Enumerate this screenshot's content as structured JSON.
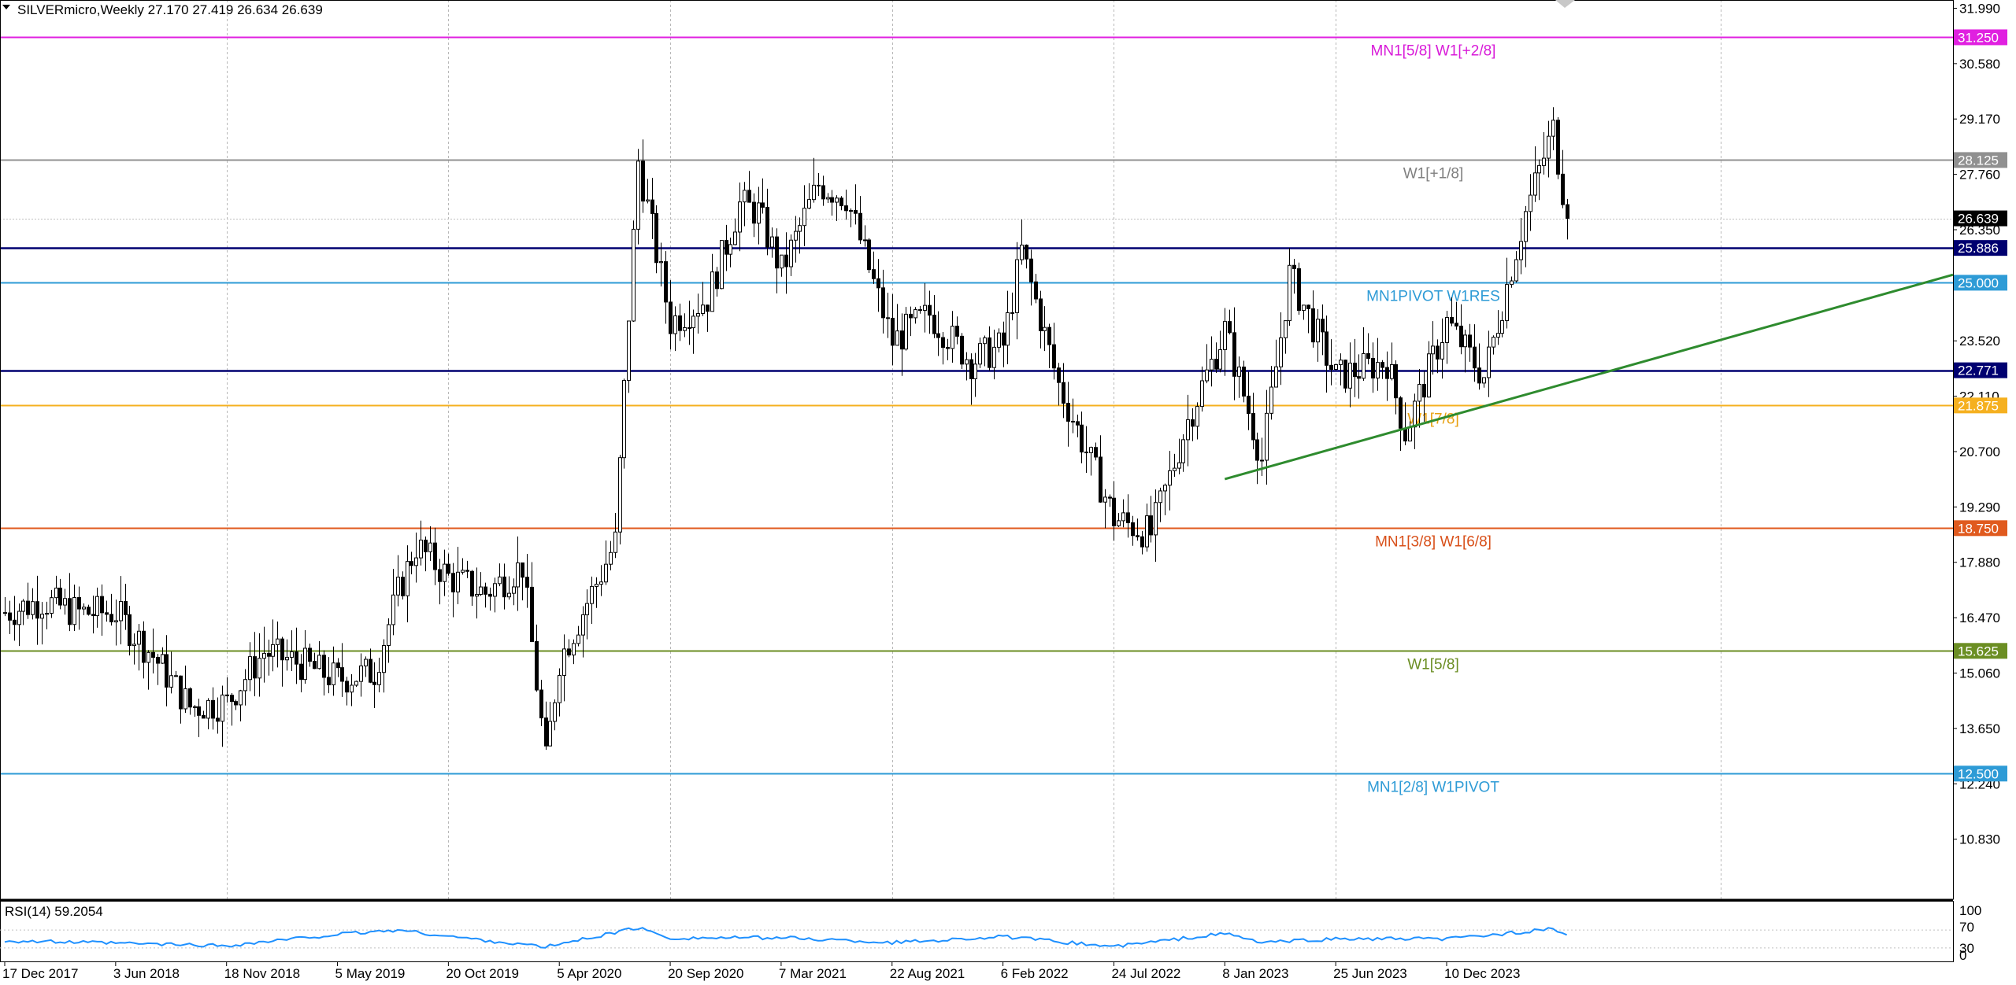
{
  "header": {
    "symbol": "SILVERmicro,Weekly",
    "ohlc": "27.170 27.419 26.634 26.639"
  },
  "rsi": {
    "title": "RSI(14) 59.2054",
    "current": 59.2,
    "levels": [
      70,
      30
    ],
    "scale_labels": [
      "100",
      "70",
      "30",
      "0"
    ],
    "line_color": "#1e90ff"
  },
  "levels": [
    {
      "label": "MN1[5/8] W1[+2/8]",
      "price": 31.25,
      "price_label": "31.250",
      "color": "#e020e0",
      "text_color": "#d81bd8"
    },
    {
      "label": "W1[+1/8]",
      "price": 28.125,
      "price_label": "28.125",
      "color": "#909090",
      "text_color": "#808080"
    },
    {
      "label": "",
      "price": 25.886,
      "price_label": "25.886",
      "color": "#000070",
      "text_color": "#000070"
    },
    {
      "label": "MN1PIVOT W1RES",
      "price": 25.0,
      "price_label": "25.000",
      "color": "#2e9bd6",
      "text_color": "#2e9bd6"
    },
    {
      "label": "",
      "price": 22.771,
      "price_label": "22.771",
      "color": "#000070",
      "text_color": "#000070"
    },
    {
      "label": "W1[7/8]",
      "price": 21.875,
      "price_label": "21.875",
      "color": "#f5b020",
      "text_color": "#e8a010"
    },
    {
      "label": "MN1[3/8] W1[6/8]",
      "price": 18.75,
      "price_label": "18.750",
      "color": "#e05a1e",
      "text_color": "#d8501a"
    },
    {
      "label": "W1[5/8]",
      "price": 15.625,
      "price_label": "15.625",
      "color": "#6b8e23",
      "text_color": "#6b8e23"
    },
    {
      "label": "MN1[2/8] W1PIVOT",
      "price": 12.5,
      "price_label": "12.500",
      "color": "#2e9bd6",
      "text_color": "#2e9bd6"
    }
  ],
  "current_price": {
    "value": 26.639,
    "label": "26.639"
  },
  "chart_data": {
    "type": "candlestick",
    "title": "SILVERmicro,Weekly",
    "ylim": [
      9.3,
      32.2
    ],
    "y_ticks": [
      "31.990",
      "30.580",
      "29.170",
      "27.760",
      "26.350",
      "23.520",
      "22.110",
      "20.700",
      "19.290",
      "17.880",
      "16.470",
      "15.060",
      "13.650",
      "12.240",
      "10.830"
    ],
    "x_labels": [
      "17 Dec 2017",
      "3 Jun 2018",
      "18 Nov 2018",
      "5 May 2019",
      "20 Oct 2019",
      "5 Apr 2020",
      "20 Sep 2020",
      "7 Mar 2021",
      "22 Aug 2021",
      "6 Feb 2022",
      "24 Jul 2022",
      "8 Jan 2023",
      "25 Jun 2023",
      "10 Dec 2023"
    ],
    "grid": true,
    "close_anchors": [
      [
        "17 Dec 2017",
        16.6
      ],
      [
        "11 Feb 2018",
        16.9
      ],
      [
        "8 Apr 2018",
        16.6
      ],
      [
        "3 Jun 2018",
        16.6
      ],
      [
        "29 Jul 2018",
        15.5
      ],
      [
        "23 Sep 2018",
        14.2
      ],
      [
        "18 Nov 2018",
        14.3
      ],
      [
        "13 Jan 2019",
        15.6
      ],
      [
        "10 Mar 2019",
        15.3
      ],
      [
        "5 May 2019",
        14.9
      ],
      [
        "30 Jun 2019",
        15.1
      ],
      [
        "4 Aug 2019",
        17.1
      ],
      [
        "1 Sep 2019",
        18.3
      ],
      [
        "20 Oct 2019",
        17.5
      ],
      [
        "15 Dec 2019",
        17.1
      ],
      [
        "9 Feb 2020",
        17.8
      ],
      [
        "15 Mar 2020",
        12.8
      ],
      [
        "5 Apr 2020",
        15.4
      ],
      [
        "7 Jun 2020",
        17.6
      ],
      [
        "28 Jun 2020",
        18.4
      ],
      [
        "2 Aug 2020",
        28.1
      ],
      [
        "20 Sep 2020",
        24.0
      ],
      [
        "15 Nov 2020",
        24.6
      ],
      [
        "3 Jan 2021",
        27.0
      ],
      [
        "31 Jan 2021",
        26.8
      ],
      [
        "7 Mar 2021",
        25.3
      ],
      [
        "2 May 2021",
        27.5
      ],
      [
        "13 Jun 2021",
        27.2
      ],
      [
        "22 Aug 2021",
        23.5
      ],
      [
        "17 Oct 2021",
        24.2
      ],
      [
        "19 Dec 2021",
        23.0
      ],
      [
        "6 Feb 2022",
        23.4
      ],
      [
        "6 Mar 2022",
        25.8
      ],
      [
        "1 May 2022",
        22.4
      ],
      [
        "24 Jul 2022",
        19.0
      ],
      [
        "18 Sep 2022",
        18.6
      ],
      [
        "13 Nov 2022",
        21.5
      ],
      [
        "8 Jan 2023",
        23.8
      ],
      [
        "5 Mar 2023",
        20.5
      ],
      [
        "16 Apr 2023",
        25.2
      ],
      [
        "25 Jun 2023",
        22.6
      ],
      [
        "10 Sep 2023",
        23.0
      ],
      [
        "8 Oct 2023",
        21.2
      ],
      [
        "10 Dec 2023",
        24.0
      ],
      [
        "4 Feb 2024",
        22.6
      ],
      [
        "7 Apr 2024",
        26.8
      ],
      [
        "19 May 2024",
        28.9
      ],
      [
        "9 Jun 2024",
        26.639
      ]
    ],
    "trendline": {
      "from": [
        "8 Jan 2023",
        20.0
      ],
      "to": [
        "9 Feb 2025",
        23.6
      ],
      "color": "#2e8b2e"
    },
    "rsi_anchors": [
      [
        "17 Dec 2017",
        46
      ],
      [
        "18 Nov 2018",
        35
      ],
      [
        "5 May 2019",
        60
      ],
      [
        "4 Aug 2019",
        70
      ],
      [
        "20 Oct 2019",
        56
      ],
      [
        "15 Mar 2020",
        32
      ],
      [
        "2 Aug 2020",
        75
      ],
      [
        "20 Sep 2020",
        52
      ],
      [
        "7 Mar 2021",
        53
      ],
      [
        "22 Aug 2021",
        42
      ],
      [
        "6 Feb 2022",
        55
      ],
      [
        "24 Jul 2022",
        33
      ],
      [
        "8 Jan 2023",
        62
      ],
      [
        "5 Mar 2023",
        42
      ],
      [
        "25 Jun 2023",
        50
      ],
      [
        "10 Dec 2023",
        50
      ],
      [
        "19 May 2024",
        72
      ],
      [
        "9 Jun 2024",
        59
      ]
    ]
  }
}
